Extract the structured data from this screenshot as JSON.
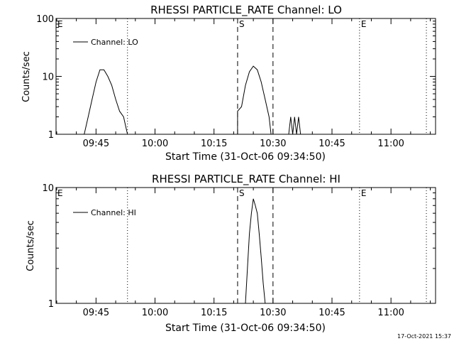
{
  "footer": {
    "timestamp": "17-Oct-2021 15:37"
  },
  "chart_data": [
    {
      "type": "line",
      "title": "RHESSI PARTICLE_RATE Channel: LO",
      "xlabel": "Start Time (31-Oct-06 09:34:50)",
      "ylabel": "Counts/sec",
      "y_scale": "log",
      "ylim": [
        1,
        100
      ],
      "y_ticks": [
        "1",
        "10",
        "100"
      ],
      "x_tick_labels": [
        "09:45",
        "10:00",
        "10:15",
        "10:30",
        "10:45",
        "11:00"
      ],
      "legend": {
        "position": "top-left",
        "label": "Channel: LO"
      },
      "markers": [
        {
          "label": "E",
          "time": "09:34:50",
          "style": "none"
        },
        {
          "label": "",
          "time": "09:53",
          "style": "dotted"
        },
        {
          "label": "S",
          "time": "10:21",
          "style": "dashed"
        },
        {
          "label": "",
          "time": "10:30",
          "style": "dashed"
        },
        {
          "label": "E",
          "time": "10:52",
          "style": "dotted"
        },
        {
          "label": "",
          "time": "11:09",
          "style": "dotted"
        }
      ],
      "series": [
        {
          "name": "Channel: LO",
          "points": [
            [
              "09:42",
              1
            ],
            [
              "09:43",
              2
            ],
            [
              "09:44",
              4
            ],
            [
              "09:45",
              8
            ],
            [
              "09:46",
              13
            ],
            [
              "09:47",
              13
            ],
            [
              "09:48",
              10
            ],
            [
              "09:49",
              7
            ],
            [
              "09:50",
              4
            ],
            [
              "09:51",
              2.5
            ],
            [
              "09:52",
              2
            ],
            [
              "09:53",
              1
            ],
            [
              "10:21",
              1
            ],
            [
              "10:21",
              2.5
            ],
            [
              "10:22",
              3
            ],
            [
              "10:23",
              7
            ],
            [
              "10:24",
              12
            ],
            [
              "10:25",
              15
            ],
            [
              "10:26",
              13
            ],
            [
              "10:27",
              8
            ],
            [
              "10:28",
              4
            ],
            [
              "10:29",
              2
            ],
            [
              "10:29:30",
              1
            ],
            [
              "10:34",
              1
            ],
            [
              "10:34:30",
              2
            ],
            [
              "10:35",
              1
            ],
            [
              "10:35:30",
              2
            ],
            [
              "10:36",
              1
            ],
            [
              "10:36:30",
              2
            ],
            [
              "10:37",
              1
            ]
          ]
        }
      ]
    },
    {
      "type": "line",
      "title": "RHESSI PARTICLE_RATE Channel: HI",
      "xlabel": "Start Time (31-Oct-06 09:34:50)",
      "ylabel": "Counts/sec",
      "y_scale": "log",
      "ylim": [
        1,
        10
      ],
      "y_ticks": [
        "1",
        "10"
      ],
      "x_tick_labels": [
        "09:45",
        "10:00",
        "10:15",
        "10:30",
        "10:45",
        "11:00"
      ],
      "legend": {
        "position": "top-left",
        "label": "Channel: HI"
      },
      "markers": [
        {
          "label": "E",
          "time": "09:34:50",
          "style": "none"
        },
        {
          "label": "",
          "time": "09:53",
          "style": "dotted"
        },
        {
          "label": "S",
          "time": "10:21",
          "style": "dashed"
        },
        {
          "label": "",
          "time": "10:30",
          "style": "dashed"
        },
        {
          "label": "E",
          "time": "10:52",
          "style": "dotted"
        },
        {
          "label": "",
          "time": "11:09",
          "style": "dotted"
        }
      ],
      "series": [
        {
          "name": "Channel: HI",
          "points": [
            [
              "10:23",
              1
            ],
            [
              "10:23:30",
              2
            ],
            [
              "10:24",
              4
            ],
            [
              "10:24:30",
              6
            ],
            [
              "10:25",
              8
            ],
            [
              "10:25:30",
              7
            ],
            [
              "10:26",
              6
            ],
            [
              "10:26:30",
              4
            ],
            [
              "10:27",
              2.5
            ],
            [
              "10:27:30",
              1.5
            ],
            [
              "10:28",
              1
            ]
          ]
        }
      ]
    }
  ]
}
